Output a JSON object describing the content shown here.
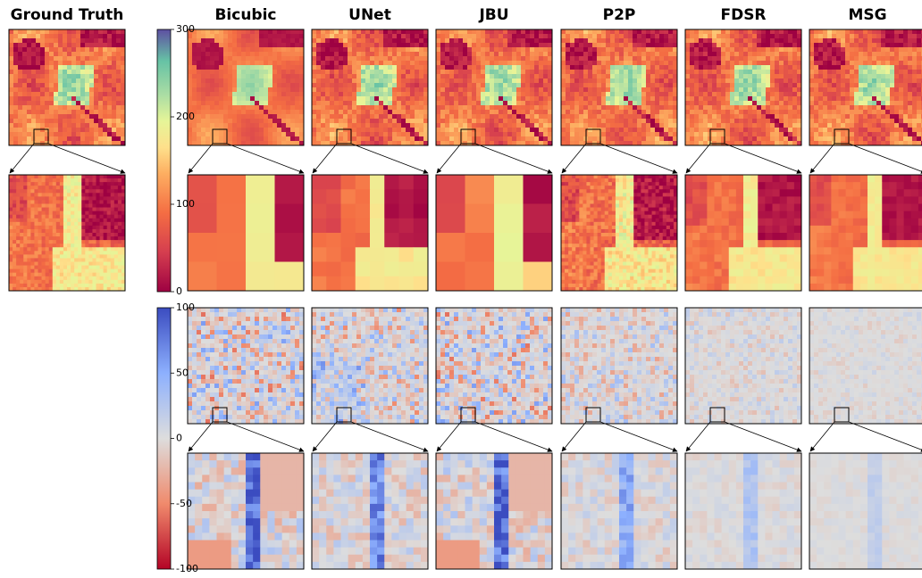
{
  "columns": [
    "Ground Truth",
    "Bicubic",
    "UNet",
    "JBU",
    "P2P",
    "FDSR",
    "MSG"
  ],
  "colorbars": [
    {
      "range": [
        0,
        300
      ],
      "ticks": [
        0,
        100,
        200,
        300
      ]
    },
    {
      "range": [
        -100,
        100
      ],
      "ticks": [
        -100,
        -50,
        0,
        50,
        100
      ]
    }
  ]
}
